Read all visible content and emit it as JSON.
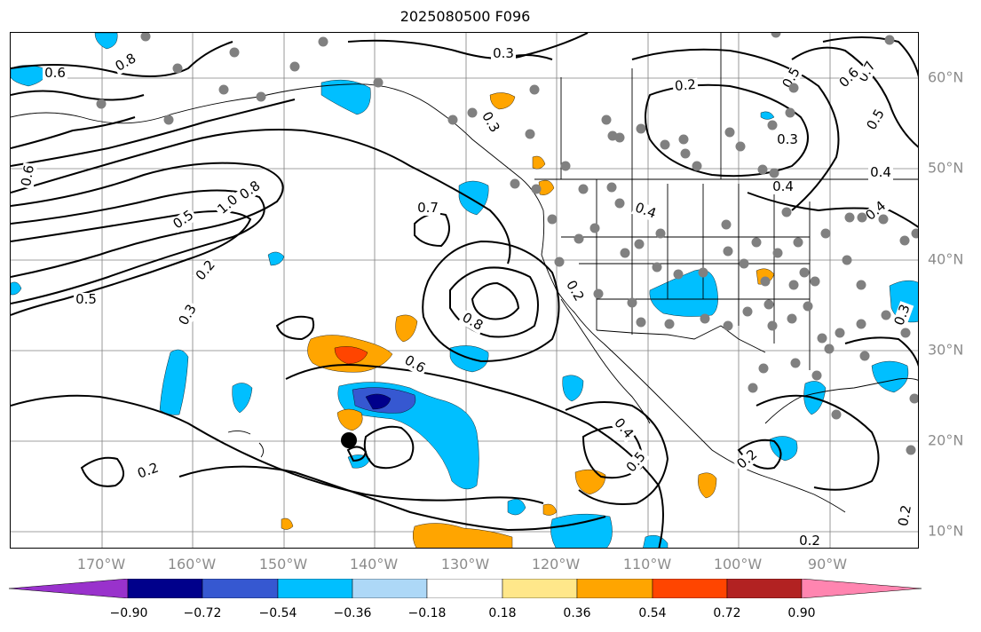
{
  "title": "2025080500 F096",
  "map": {
    "lon_labels": [
      "170°W",
      "160°W",
      "150°W",
      "140°W",
      "130°W",
      "120°W",
      "110°W",
      "100°W",
      "90°W"
    ],
    "lat_labels": [
      "60°N",
      "50°N",
      "40°N",
      "30°N",
      "20°N",
      "10°N"
    ],
    "contour_labels": [
      "0.3",
      "0.2",
      "0.8",
      "0.7",
      "0.6",
      "0.5",
      "0.6",
      "0.5",
      "0.3",
      "0.4",
      "0.3",
      "0.4",
      "0.6",
      "0.5",
      "1.0",
      "0.8",
      "0.7",
      "0.4",
      "0.2",
      "0.4",
      "0.5",
      "0.3",
      "0.8",
      "0.2",
      "0.6",
      "0.4",
      "0.5",
      "0.2",
      "0.2",
      "0.2",
      "0.3",
      "0.2"
    ],
    "colors": {
      "gridline": "#808080",
      "station_dot": "#808080",
      "contour": "#000000",
      "coast": "#000000"
    }
  },
  "colorbar": {
    "ticks": [
      "−0.90",
      "−0.72",
      "−0.54",
      "−0.36",
      "−0.18",
      "0.18",
      "0.36",
      "0.54",
      "0.72",
      "0.90"
    ],
    "colors": [
      "#9932cc",
      "#00008b",
      "#3658d1",
      "#00bfff",
      "#add8f7",
      "#ffffff",
      "#ffe78a",
      "#ffa500",
      "#ff4500",
      "#b22222",
      "#ff85b0"
    ]
  }
}
